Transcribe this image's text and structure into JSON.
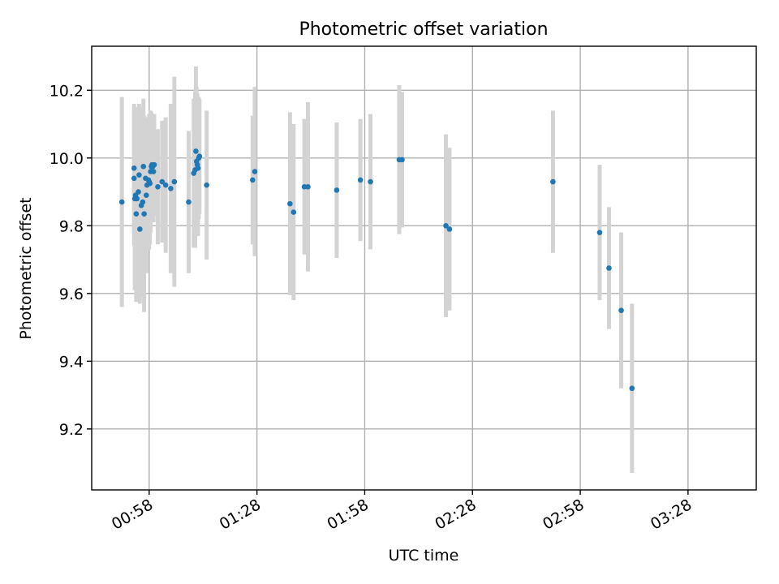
{
  "chart_data": {
    "type": "scatter",
    "title": "Photometric offset variation",
    "xlabel": "UTC time",
    "ylabel": "Photometric offset",
    "xlim": [
      "00:42",
      "03:47"
    ],
    "ylim": [
      9.02,
      10.33
    ],
    "grid": true,
    "x_ticks": [
      "00:58",
      "01:28",
      "01:58",
      "02:28",
      "02:58",
      "03:28"
    ],
    "y_ticks": [
      "9.2",
      "9.4",
      "9.6",
      "9.8",
      "10.0",
      "10.2"
    ],
    "colors": {
      "point": "#1f77b4",
      "errorbar": "#d3d3d3",
      "grid": "#b0b0b0"
    },
    "series": [
      {
        "x": [
          "00:50:24",
          "00:54:00",
          "00:54:12",
          "00:54:36",
          "00:55:00",
          "00:55:12",
          "00:57:00",
          "00:57:24",
          "00:58:12",
          "01:00:24",
          "01:01:36",
          "01:02:36",
          "01:04:00",
          "01:05:00",
          "01:09:00",
          "01:10:24",
          "01:10:48",
          "01:11:00",
          "01:11:12",
          "01:11:24",
          "01:11:36",
          "01:11:48",
          "01:12:00",
          "01:14:00",
          "01:26:48",
          "01:27:24",
          "01:37:12",
          "01:38:12",
          "01:41:12",
          "01:42:12",
          "01:50:12",
          "01:56:48",
          "01:59:36",
          "02:07:36",
          "02:08:24",
          "02:20:36",
          "02:21:36"
        ],
        "y": [
          9.87,
          9.88,
          9.89,
          9.88,
          9.9,
          9.95,
          9.94,
          9.92,
          9.925,
          9.915,
          9.93,
          9.92,
          9.91,
          9.93,
          9.87,
          9.955,
          9.965,
          10.02,
          9.99,
          9.98,
          9.97,
          10.0,
          10.005,
          9.92,
          9.935,
          9.96,
          9.865,
          9.84,
          9.915,
          9.915,
          9.905,
          9.935,
          9.93,
          9.995,
          9.995,
          9.8,
          9.79
        ],
        "y_err": [
          0.31,
          0.27,
          0.26,
          0.24,
          0.22,
          0.21,
          0.18,
          0.17,
          0.18,
          0.17,
          0.18,
          0.2,
          0.25,
          0.31,
          0.21,
          0.22,
          0.23,
          0.25,
          0.22,
          0.21,
          0.2,
          0.18,
          0.17,
          0.22,
          0.19,
          0.25,
          0.27,
          0.26,
          0.2,
          0.25,
          0.2,
          0.18,
          0.2,
          0.22,
          0.2,
          0.27,
          0.24
        ]
      },
      {
        "x": [
          "02:50:24",
          "03:03:24",
          "03:06:00",
          "03:09:24",
          "03:12:24"
        ],
        "y": [
          9.93,
          9.78,
          9.675,
          9.55,
          9.32
        ],
        "y_err": [
          0.21,
          0.2,
          0.18,
          0.23,
          0.25
        ]
      },
      {
        "x": [
          "00:53:48",
          "00:53:48",
          "00:54:24",
          "00:55:24",
          "00:55:48",
          "00:56:12",
          "00:56:24",
          "00:56:36",
          "00:57:12",
          "00:57:48",
          "00:58:00",
          "00:58:24",
          "00:58:36",
          "00:58:48",
          "00:59:00",
          "00:59:12",
          "00:59:24"
        ],
        "y": [
          9.97,
          9.94,
          9.835,
          9.79,
          9.86,
          9.87,
          9.975,
          9.835,
          9.89,
          9.935,
          9.93,
          9.96,
          9.975,
          9.98,
          9.975,
          9.96,
          9.98
        ],
        "y_err": [
          0.19,
          0.2,
          0.26,
          0.22,
          0.25,
          0.28,
          0.2,
          0.29,
          0.23,
          0.18,
          0.2,
          0.18,
          0.16,
          0.15,
          0.14,
          0.15,
          0.15
        ]
      }
    ]
  }
}
